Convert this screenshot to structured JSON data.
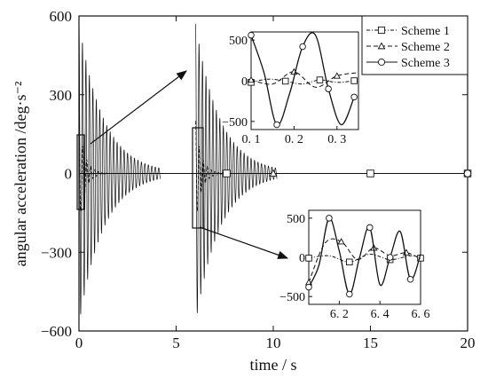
{
  "chart_data": [
    {
      "type": "line",
      "xlabel": "time / s",
      "ylabel": "angular acceleration /deg·s⁻²",
      "xlim": [
        0,
        20
      ],
      "ylim": [
        -600,
        600
      ],
      "x_ticks": [
        "0",
        "5",
        "10",
        "15",
        "20"
      ],
      "y_ticks": [
        "600",
        "300",
        "0",
        "−300",
        "−600"
      ],
      "grid": false,
      "legend": "top-right",
      "series": [
        {
          "name": "Scheme 1",
          "line_style": "dash-dot",
          "marker": "square",
          "description": "decaying oscillation, peak amplitude ~575 at t≈0 and ~570 at t≈6 (second excitation), settles near 0 by t≈4 and t≈11",
          "envelope_peaks": [
            {
              "t": 0.0,
              "amp": 575
            },
            {
              "t": 6.0,
              "amp": 570
            }
          ],
          "marker_points": [
            [
              7.6,
              0
            ],
            [
              15,
              0
            ],
            [
              20,
              0
            ]
          ]
        },
        {
          "name": "Scheme 2",
          "line_style": "dashed",
          "marker": "triangle",
          "description": "small damped oscillation, amplitude ~200 at excitation, decays quickly",
          "marker_points": [
            [
              10,
              0
            ]
          ]
        },
        {
          "name": "Scheme 3",
          "line_style": "solid",
          "marker": "circle",
          "description": "small damped oscillation near zero",
          "marker_points": [
            [
              20,
              0
            ]
          ]
        }
      ]
    },
    {
      "type": "line",
      "inset": "upper",
      "xlim": [
        0.1,
        0.35
      ],
      "ylim": [
        -600,
        600
      ],
      "x_ticks": [
        "0. 1",
        "0. 2",
        "0. 3"
      ],
      "y_ticks": [
        "500",
        "0",
        "−500"
      ],
      "series": [
        {
          "name": "Scheme 1",
          "x": [
            0.1,
            0.14,
            0.18,
            0.22,
            0.26,
            0.3,
            0.34
          ],
          "y": [
            -20,
            20,
            -5,
            -40,
            10,
            -20,
            0
          ]
        },
        {
          "name": "Scheme 2",
          "x": [
            0.1,
            0.15,
            0.2,
            0.25,
            0.3,
            0.35
          ],
          "y": [
            10,
            -40,
            110,
            -80,
            60,
            100
          ]
        },
        {
          "name": "Scheme 3",
          "x": [
            0.1,
            0.13,
            0.16,
            0.19,
            0.22,
            0.25,
            0.28,
            0.31,
            0.34
          ],
          "y": [
            560,
            100,
            -540,
            -150,
            420,
            560,
            -100,
            -540,
            -200
          ]
        }
      ]
    },
    {
      "type": "line",
      "inset": "lower",
      "xlim": [
        6.05,
        6.6
      ],
      "ylim": [
        -600,
        600
      ],
      "x_ticks": [
        "6. 2",
        "6. 4",
        "6. 6"
      ],
      "y_ticks": [
        "500",
        "0",
        "−500"
      ],
      "series": [
        {
          "name": "Scheme 1",
          "x": [
            6.05,
            6.15,
            6.25,
            6.35,
            6.45,
            6.55,
            6.6
          ],
          "y": [
            -10,
            20,
            -60,
            40,
            -30,
            20,
            -10
          ]
        },
        {
          "name": "Scheme 2",
          "x": [
            6.05,
            6.13,
            6.21,
            6.29,
            6.37,
            6.45,
            6.53,
            6.6
          ],
          "y": [
            -320,
            180,
            200,
            -30,
            120,
            20,
            60,
            -20
          ]
        },
        {
          "name": "Scheme 3",
          "x": [
            6.05,
            6.1,
            6.15,
            6.2,
            6.25,
            6.3,
            6.35,
            6.4,
            6.45,
            6.5,
            6.55,
            6.6
          ],
          "y": [
            -380,
            -100,
            500,
            80,
            -470,
            0,
            380,
            -350,
            0,
            330,
            -280,
            40
          ]
        }
      ]
    }
  ]
}
